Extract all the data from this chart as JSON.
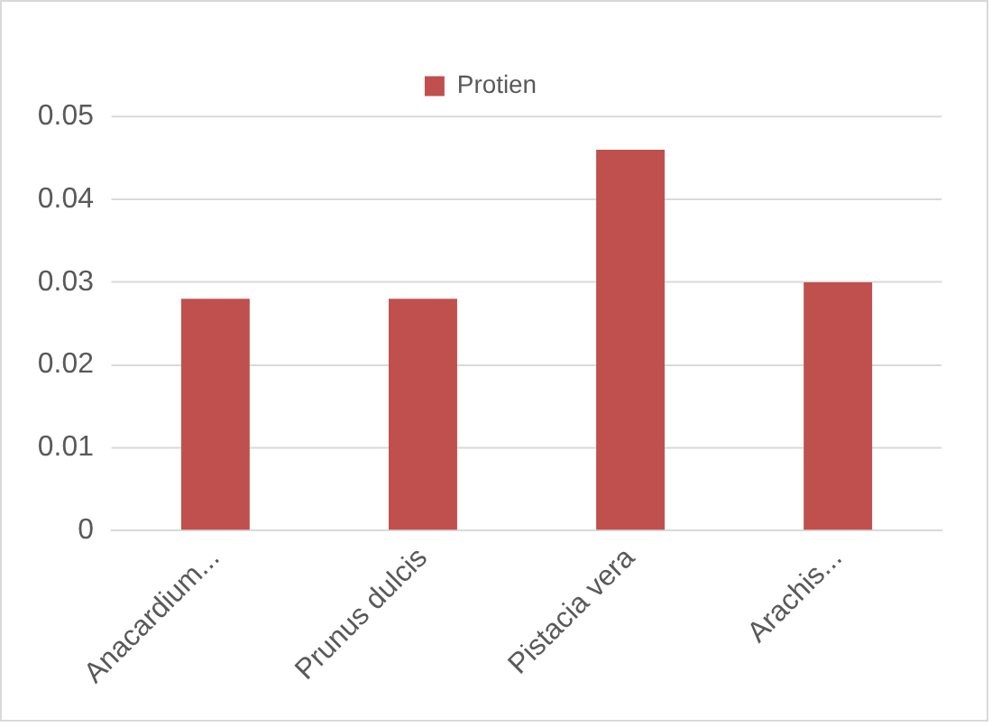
{
  "chart_data": {
    "type": "bar",
    "categories": [
      "Anacardium...",
      "Prunus dulcis",
      "Pistacia vera",
      "Arachis..."
    ],
    "series": [
      {
        "name": "Protien",
        "color": "#c0504d",
        "values": [
          0.028,
          0.028,
          0.046,
          0.03
        ]
      }
    ],
    "ylim": [
      0,
      0.05
    ],
    "yticks": [
      0,
      0.01,
      0.02,
      0.03,
      0.04,
      0.05
    ],
    "grid": "y",
    "legend": "top"
  }
}
